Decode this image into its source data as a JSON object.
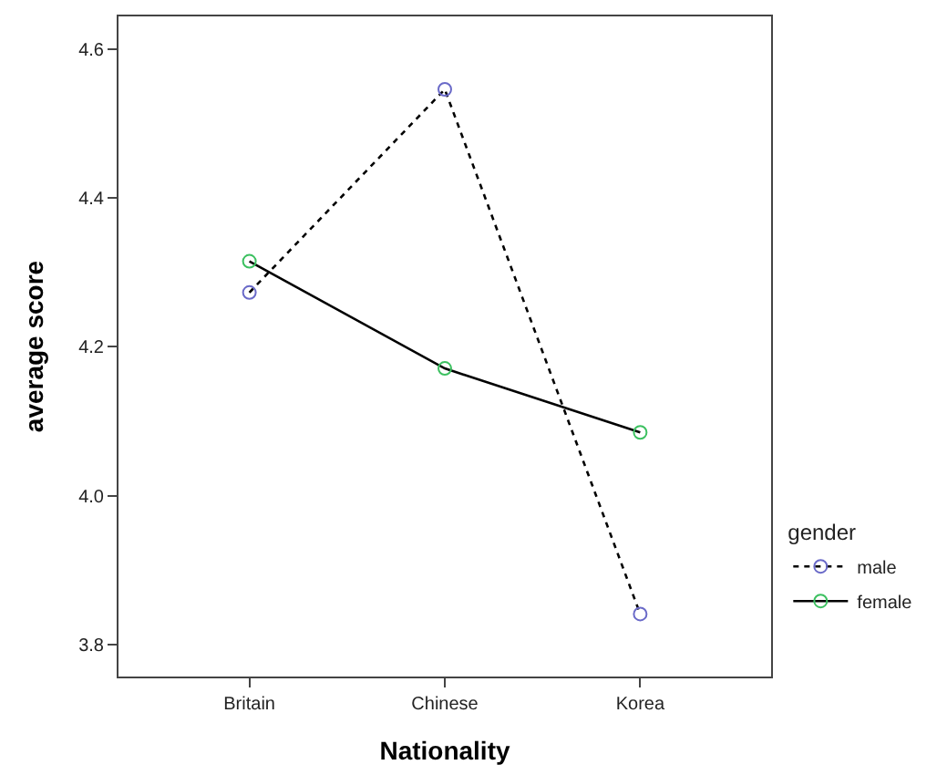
{
  "chart_data": {
    "type": "line",
    "xlabel": "Nationality",
    "ylabel": "average score",
    "legend_title": "gender",
    "categories": [
      "Britain",
      "Chinese",
      "Korea"
    ],
    "series": [
      {
        "name": "male",
        "color": "#000000",
        "colors": [
          "#6a6ac8",
          "#6a6ac8",
          "#6a6ac8"
        ],
        "line_style": "dotted",
        "values": [
          4.273,
          4.546,
          3.841
        ]
      },
      {
        "name": "female",
        "color": "#000000",
        "colors": [
          "#3cc060",
          "#3cc060",
          "#3cc060"
        ],
        "line_style": "solid",
        "values": [
          4.315,
          4.171,
          4.085
        ]
      }
    ],
    "ylim": [
      3.757,
      4.644
    ],
    "yticks": [
      3.8,
      {
        "value": 4,
        "label": "4.0"
      },
      4.2,
      4.4,
      4.6
    ],
    "legend": "bottom right",
    "marker": "circle"
  }
}
